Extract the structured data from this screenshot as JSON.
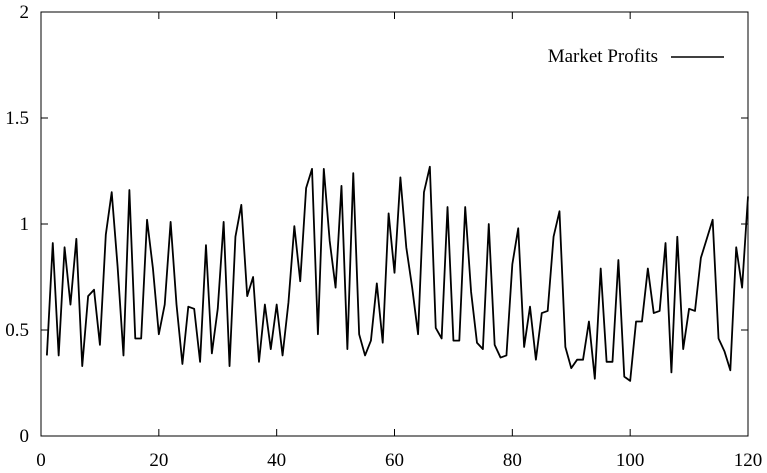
{
  "chart_data": {
    "type": "line",
    "title": "",
    "xlabel": "",
    "ylabel": "",
    "xlim": [
      0,
      120
    ],
    "ylim": [
      0,
      2
    ],
    "x_ticks": [
      0,
      20,
      40,
      60,
      80,
      100,
      120
    ],
    "y_ticks": [
      0,
      0.5,
      1,
      1.5,
      2
    ],
    "x_tick_labels": [
      "0",
      "20",
      "40",
      "60",
      "80",
      "100",
      "120"
    ],
    "y_tick_labels": [
      "0",
      "0.5",
      "1",
      "1.5",
      "2"
    ],
    "grid": false,
    "legend": {
      "position": "top-right"
    },
    "series": [
      {
        "name": "Market Profits",
        "color": "#000000",
        "x": [
          1,
          2,
          3,
          4,
          5,
          6,
          7,
          8,
          9,
          10,
          11,
          12,
          13,
          14,
          15,
          16,
          17,
          18,
          19,
          20,
          21,
          22,
          23,
          24,
          25,
          26,
          27,
          28,
          29,
          30,
          31,
          32,
          33,
          34,
          35,
          36,
          37,
          38,
          39,
          40,
          41,
          42,
          43,
          44,
          45,
          46,
          47,
          48,
          49,
          50,
          51,
          52,
          53,
          54,
          55,
          56,
          57,
          58,
          59,
          60,
          61,
          62,
          63,
          64,
          65,
          66,
          67,
          68,
          69,
          70,
          71,
          72,
          73,
          74,
          75,
          76,
          77,
          78,
          79,
          80,
          81,
          82,
          83,
          84,
          85,
          86,
          87,
          88,
          89,
          90,
          91,
          92,
          93,
          94,
          95,
          96,
          97,
          98,
          99,
          100,
          101,
          102,
          103,
          104,
          105,
          106,
          107,
          108,
          109,
          110,
          111,
          112,
          113,
          114,
          115,
          116,
          117,
          118,
          119,
          120
        ],
        "values": [
          0.38,
          0.91,
          0.38,
          0.89,
          0.62,
          0.93,
          0.33,
          0.66,
          0.69,
          0.43,
          0.95,
          1.15,
          0.8,
          0.38,
          1.16,
          0.46,
          0.46,
          1.02,
          0.79,
          0.48,
          0.62,
          1.01,
          0.62,
          0.34,
          0.61,
          0.6,
          0.35,
          0.9,
          0.39,
          0.6,
          1.01,
          0.33,
          0.94,
          1.09,
          0.66,
          0.75,
          0.35,
          0.62,
          0.41,
          0.62,
          0.38,
          0.63,
          0.99,
          0.73,
          1.17,
          1.26,
          0.48,
          1.26,
          0.92,
          0.7,
          1.18,
          0.41,
          1.24,
          0.48,
          0.38,
          0.45,
          0.72,
          0.44,
          1.05,
          0.77,
          1.22,
          0.89,
          0.7,
          0.48,
          1.15,
          1.27,
          0.51,
          0.46,
          1.08,
          0.45,
          0.45,
          1.08,
          0.68,
          0.44,
          0.41,
          1.0,
          0.43,
          0.37,
          0.38,
          0.81,
          0.98,
          0.42,
          0.61,
          0.36,
          0.58,
          0.59,
          0.94,
          1.06,
          0.42,
          0.32,
          0.36,
          0.36,
          0.54,
          0.27,
          0.79,
          0.35,
          0.35,
          0.83,
          0.28,
          0.26,
          0.54,
          0.54,
          0.79,
          0.58,
          0.59,
          0.91,
          0.3,
          0.94,
          0.41,
          0.6,
          0.59,
          0.84,
          0.93,
          1.02,
          0.46,
          0.4,
          0.31,
          0.89,
          0.7,
          1.13
        ]
      }
    ]
  }
}
